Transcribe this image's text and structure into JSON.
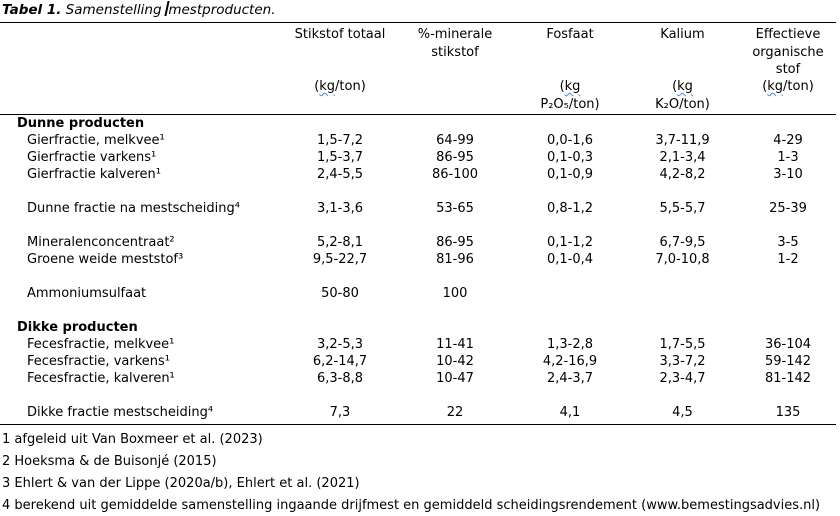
{
  "title": {
    "prefix": "Tabel 1.",
    "before_caret": " Samenstelling ",
    "after_caret": "mestproducten."
  },
  "table": {
    "headers": {
      "col1": {
        "name": ""
      },
      "col2": {
        "name": "Stikstof totaal",
        "unit_pre": "(",
        "unit_word": "kg",
        "unit_post": "/ton)",
        "unit_line2": ""
      },
      "col3": {
        "name": "%-minerale stikstof"
      },
      "col4": {
        "name": "Fosfaat",
        "unit_pre": "(",
        "unit_word": "kg",
        "unit_post": "",
        "unit_line2": "P₂O₅/ton)"
      },
      "col5": {
        "name": "Kalium",
        "unit_pre": "(",
        "unit_word": "kg",
        "unit_post": "",
        "unit_line2": "K₂O/ton)"
      },
      "col6": {
        "name": "Effectieve organische stof",
        "unit_pre": "(",
        "unit_word": "kg",
        "unit_post": "/ton)",
        "unit_line2": ""
      }
    },
    "rows": [
      {
        "type": "group",
        "label": "Dunne producten"
      },
      {
        "type": "item",
        "label": "Gierfractie, melkvee¹",
        "values": [
          "1,5-7,2",
          "64-99",
          "0,0-1,6",
          "3,7-11,9",
          "4-29"
        ]
      },
      {
        "type": "item",
        "label": "Gierfractie varkens¹",
        "values": [
          "1,5-3,7",
          "86-95",
          "0,1-0,3",
          "2,1-3,4",
          "1-3"
        ]
      },
      {
        "type": "item",
        "label": "Gierfractie kalveren¹",
        "values": [
          "2,4-5,5",
          "86-100",
          "0,1-0,9",
          "4,2-8,2",
          "3-10"
        ]
      },
      {
        "type": "spacer"
      },
      {
        "type": "item",
        "label": "Dunne fractie na mestscheiding⁴",
        "values": [
          "3,1-3,6",
          "53-65",
          "0,8-1,2",
          "5,5-5,7",
          "25-39"
        ]
      },
      {
        "type": "spacer"
      },
      {
        "type": "item",
        "label": "Mineralenconcentraat²",
        "values": [
          "5,2-8,1",
          "86-95",
          "0,1-1,2",
          "6,7-9,5",
          "3-5"
        ]
      },
      {
        "type": "item",
        "label": "Groene weide meststof³",
        "values": [
          "9,5-22,7",
          "81-96",
          "0,1-0,4",
          "7,0-10,8",
          "1-2"
        ]
      },
      {
        "type": "spacer"
      },
      {
        "type": "item",
        "label": "Ammoniumsulfaat",
        "values": [
          "50-80",
          "100",
          "",
          "",
          ""
        ]
      },
      {
        "type": "spacer"
      },
      {
        "type": "group",
        "label": "Dikke producten"
      },
      {
        "type": "item",
        "label": "Fecesfractie, melkvee¹",
        "values": [
          "3,2-5,3",
          "11-41",
          "1,3-2,8",
          "1,7-5,5",
          "36-104"
        ]
      },
      {
        "type": "item",
        "label": "Fecesfractie, varkens¹",
        "values": [
          "6,2-14,7",
          "10-42",
          "4,2-16,9",
          "3,3-7,2",
          "59-142"
        ]
      },
      {
        "type": "item",
        "label": "Fecesfractie, kalveren¹",
        "values": [
          "6,3-8,8",
          "10-47",
          "2,4-3,7",
          "2,3-4,7",
          "81-142"
        ]
      },
      {
        "type": "spacer"
      },
      {
        "type": "item",
        "label": "Dikke fractie mestscheiding⁴",
        "values": [
          "7,3",
          "22",
          "4,1",
          "4,5",
          "135"
        ]
      }
    ]
  },
  "footnotes": [
    "1 afgeleid uit Van Boxmeer et al. (2023)",
    "2 Hoeksma & de Buisonjé (2015)",
    "3 Ehlert & van der Lippe (2020a/b), Ehlert et al. (2021)",
    "4 berekend uit gemiddelde samenstelling ingaande drijfmest en gemiddeld scheidingsrendement (www.bemestingsadvies.nl)"
  ],
  "colors": {
    "text": "#000000",
    "background": "#ffffff",
    "rule": "#000000",
    "spellcheck_underline": "#4a86e8",
    "text_cursor": "#000000"
  }
}
